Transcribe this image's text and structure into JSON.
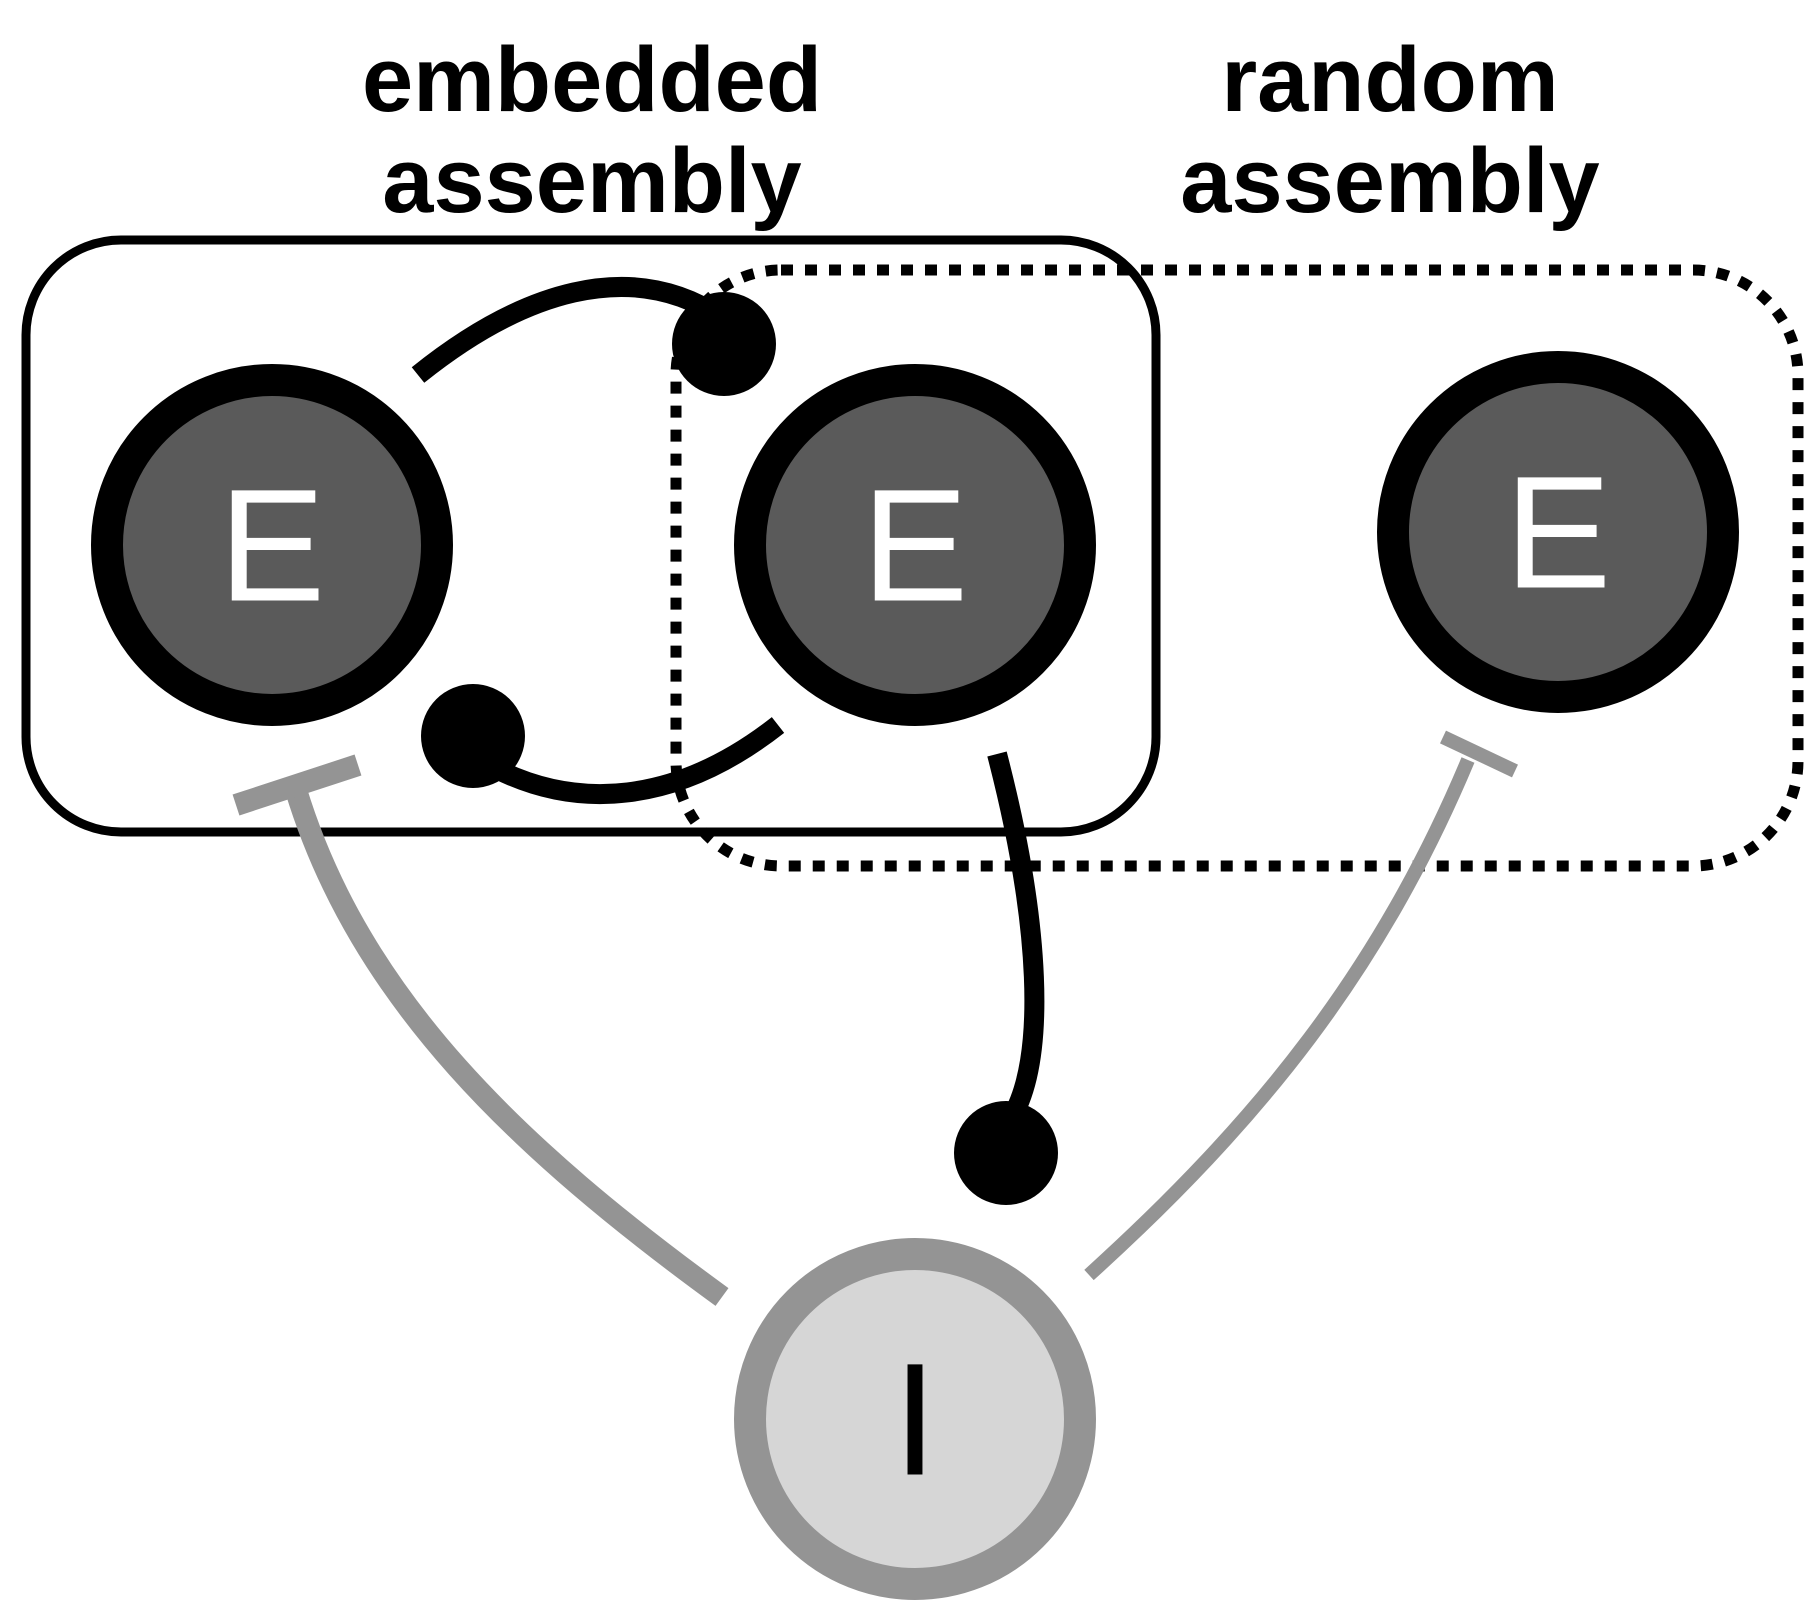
{
  "labels": {
    "embedded_line1": "embedded",
    "embedded_line2": "assembly",
    "random_line1": "random",
    "random_line2": "assembly"
  },
  "nodes": {
    "excitatory_1": "E",
    "excitatory_2": "E",
    "excitatory_3": "E",
    "inhibitory": "I"
  },
  "colors": {
    "excitatory_fill": "#5a5a5a",
    "excitatory_ring": "#000000",
    "inhibitory_fill": "#d6d6d6",
    "inhibitory_ring": "#949494",
    "inhibitory_connection": "#949494",
    "excitatory_connection": "#000000"
  }
}
